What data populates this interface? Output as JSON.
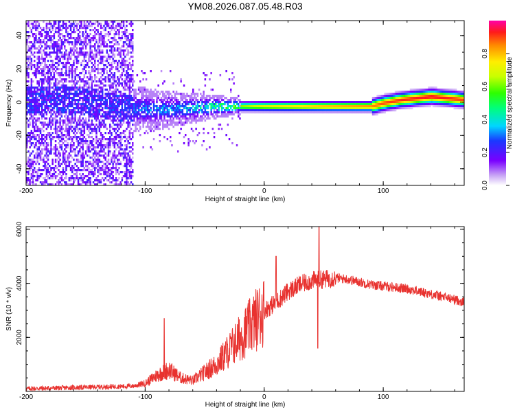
{
  "title": "YM08.2026.087.05.48.R03",
  "colors": {
    "line": "#e8322f",
    "axis": "#000000",
    "background": "#ffffff"
  },
  "chart_data": [
    {
      "type": "heatmap",
      "name": "spectrogram",
      "xlabel": "Height of straight line (km)",
      "ylabel": "Frequency (Hz)",
      "xlim": [
        -200,
        168
      ],
      "ylim": [
        -50,
        49
      ],
      "x_ticks": [
        -200,
        -100,
        0,
        100
      ],
      "y_ticks": [
        -40,
        -20,
        0,
        20,
        40
      ],
      "colorbar": {
        "label": "Normalized spectral amplitude",
        "range": [
          0,
          1
        ],
        "ticks": [
          "0.0",
          "0.2",
          "0.4",
          "0.6",
          "0.8"
        ],
        "ticks_values": [
          0,
          0.2,
          0.4,
          0.6,
          0.8
        ]
      },
      "ridge": [
        {
          "x": -160,
          "f": 2,
          "amp": 0.25
        },
        {
          "x": -120,
          "f": -3,
          "amp": 0.28
        },
        {
          "x": -90,
          "f": -4,
          "amp": 0.35
        },
        {
          "x": -60,
          "f": -3,
          "amp": 0.4
        },
        {
          "x": -40,
          "f": -2,
          "amp": 0.55
        },
        {
          "x": 0,
          "f": -2,
          "amp": 0.7
        },
        {
          "x": 50,
          "f": -2,
          "amp": 0.8
        },
        {
          "x": 90,
          "f": -2,
          "amp": 0.85
        },
        {
          "x": 100,
          "f": 0,
          "amp": 0.9
        },
        {
          "x": 115,
          "f": 2,
          "amp": 0.92
        },
        {
          "x": 140,
          "f": 4,
          "amp": 0.95
        },
        {
          "x": 168,
          "f": 2,
          "amp": 0.9
        }
      ]
    },
    {
      "type": "line",
      "name": "snr",
      "xlabel": "Height of straight line (km)",
      "ylabel": "SNR (10 * v/v)",
      "xlim": [
        -200,
        168
      ],
      "ylim": [
        0,
        6100
      ],
      "x_ticks": [
        -200,
        -100,
        0,
        100
      ],
      "y_ticks": [
        2000,
        4000,
        6000
      ],
      "trend": {
        "x": [
          -200,
          -150,
          -110,
          -100,
          -90,
          -80,
          -70,
          -60,
          -50,
          -40,
          -30,
          -20,
          -10,
          0,
          10,
          20,
          30,
          40,
          50,
          60,
          70,
          80,
          90,
          100,
          110,
          120,
          130,
          140,
          150,
          160,
          168
        ],
        "y": [
          100,
          150,
          200,
          300,
          600,
          800,
          500,
          400,
          700,
          1000,
          1500,
          2000,
          2500,
          3000,
          3300,
          3700,
          3950,
          4100,
          4150,
          4200,
          4150,
          4050,
          3950,
          3900,
          3850,
          3800,
          3700,
          3600,
          3500,
          3400,
          3300
        ]
      },
      "spikes": [
        {
          "x": -84,
          "y": 2700
        },
        {
          "x": 10,
          "y": 5000
        },
        {
          "x": 46,
          "y": 6100
        },
        {
          "x": 45,
          "y": 1600
        }
      ]
    }
  ]
}
